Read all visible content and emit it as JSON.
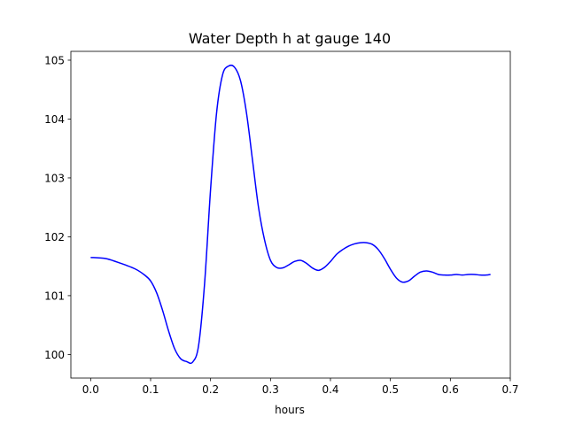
{
  "chart_data": {
    "type": "line",
    "title": "Water Depth h at gauge 140",
    "xlabel": "hours",
    "ylabel": "",
    "xlim": [
      -0.033,
      0.7
    ],
    "ylim": [
      99.6,
      105.15
    ],
    "xticks": [
      0.0,
      0.1,
      0.2,
      0.3,
      0.4,
      0.5,
      0.6,
      0.7
    ],
    "xtick_labels": [
      "0.0",
      "0.1",
      "0.2",
      "0.3",
      "0.4",
      "0.5",
      "0.6",
      "0.7"
    ],
    "yticks": [
      100,
      101,
      102,
      103,
      104,
      105
    ],
    "ytick_labels": [
      "100",
      "101",
      "102",
      "103",
      "104",
      "105"
    ],
    "grid": false,
    "legend": "none",
    "series": [
      {
        "color": "#0000ff",
        "x": [
          0.0,
          0.025,
          0.05,
          0.075,
          0.09,
          0.1,
          0.11,
          0.12,
          0.13,
          0.14,
          0.15,
          0.16,
          0.17,
          0.18,
          0.19,
          0.2,
          0.21,
          0.22,
          0.23,
          0.24,
          0.25,
          0.26,
          0.27,
          0.28,
          0.29,
          0.3,
          0.31,
          0.32,
          0.33,
          0.34,
          0.35,
          0.36,
          0.37,
          0.38,
          0.39,
          0.4,
          0.41,
          0.42,
          0.43,
          0.44,
          0.45,
          0.46,
          0.47,
          0.48,
          0.49,
          0.5,
          0.51,
          0.52,
          0.53,
          0.54,
          0.55,
          0.56,
          0.57,
          0.58,
          0.59,
          0.6,
          0.61,
          0.62,
          0.63,
          0.64,
          0.65,
          0.66,
          0.667
        ],
        "y": [
          101.65,
          101.63,
          101.55,
          101.45,
          101.35,
          101.25,
          101.05,
          100.75,
          100.4,
          100.1,
          99.93,
          99.88,
          99.87,
          100.15,
          101.2,
          102.8,
          104.1,
          104.75,
          104.9,
          104.88,
          104.65,
          104.1,
          103.3,
          102.5,
          101.95,
          101.6,
          101.48,
          101.47,
          101.52,
          101.58,
          101.6,
          101.55,
          101.47,
          101.43,
          101.48,
          101.58,
          101.7,
          101.78,
          101.84,
          101.88,
          101.9,
          101.9,
          101.87,
          101.78,
          101.63,
          101.45,
          101.3,
          101.23,
          101.25,
          101.33,
          101.4,
          101.42,
          101.4,
          101.36,
          101.35,
          101.35,
          101.36,
          101.35,
          101.36,
          101.36,
          101.35,
          101.35,
          101.36
        ]
      }
    ]
  }
}
